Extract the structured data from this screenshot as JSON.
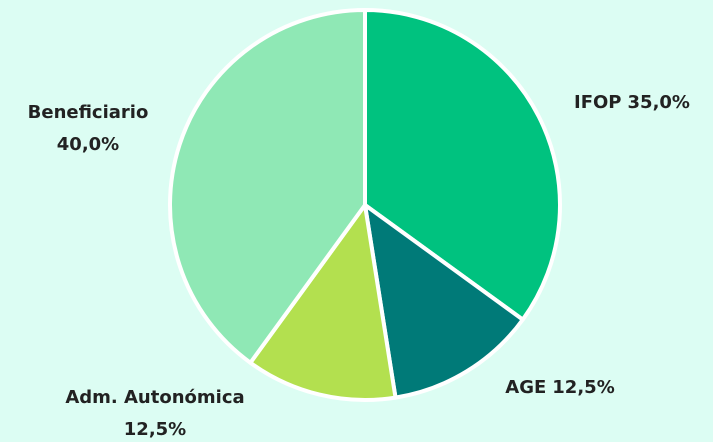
{
  "chart_data": {
    "type": "pie",
    "categories": [
      "IFOP",
      "AGE",
      "Adm. Autonómica",
      "Beneficiario"
    ],
    "values": [
      35,
      12.5,
      12.5,
      40
    ],
    "value_labels": [
      "35,0%",
      "12,5%",
      "12,5%",
      "40,0%"
    ],
    "colors": [
      "#00c27f",
      "#007a78",
      "#b3e04f",
      "#8fe8b5"
    ]
  }
}
